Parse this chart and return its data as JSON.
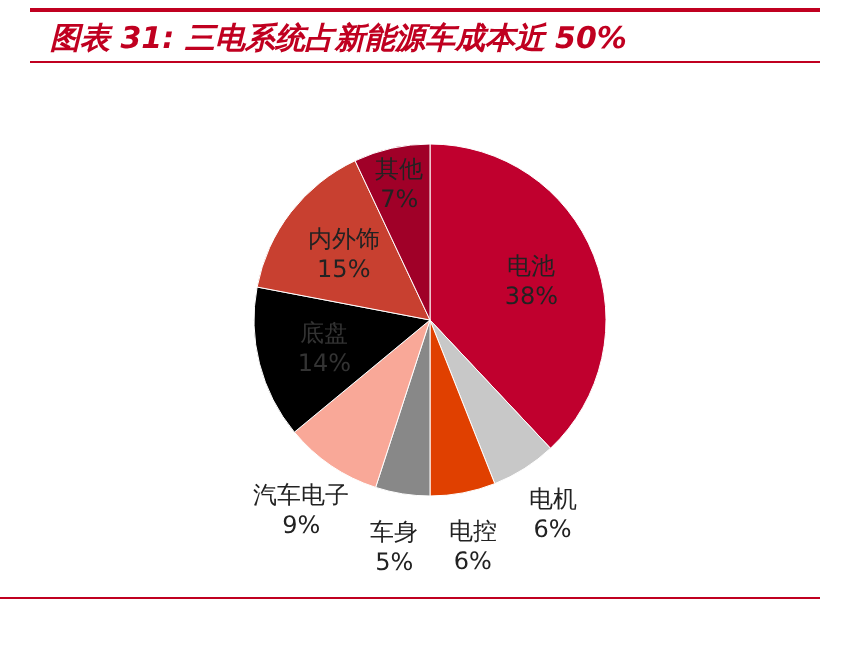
{
  "chart_data": {
    "type": "pie",
    "title": "图表 31: 三电系统占新能源车成本近 50%",
    "categories": [
      "电池",
      "电机",
      "电控",
      "车身",
      "汽车电子",
      "底盘",
      "内外饰",
      "其他"
    ],
    "values": [
      38,
      6,
      6,
      5,
      9,
      14,
      15,
      7
    ],
    "colors": [
      "#c0002e",
      "#c8c8c8",
      "#e04000",
      "#888888",
      "#f9a898",
      "#000000",
      "#c84030",
      "#a00028"
    ],
    "value_labels": [
      "38%",
      "6%",
      "6%",
      "5%",
      "9%",
      "14%",
      "15%",
      "7%"
    ]
  }
}
